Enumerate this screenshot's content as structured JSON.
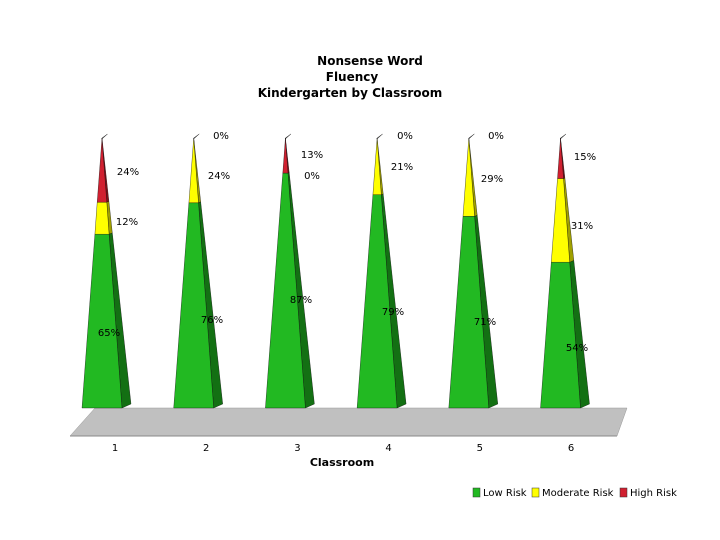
{
  "chart_data": {
    "type": "bar",
    "title": [
      "Nonsense Word",
      "Fluency",
      "Kindergarten by Classroom"
    ],
    "xlabel": "Classroom",
    "ylabel": "",
    "categories": [
      "1",
      "2",
      "3",
      "4",
      "5",
      "6"
    ],
    "series": [
      {
        "name": "Low Risk",
        "values": [
          65,
          76,
          87,
          79,
          71,
          54
        ],
        "color": "#22b922",
        "shade": "#137013"
      },
      {
        "name": "Moderate Risk",
        "values": [
          12,
          24,
          0,
          21,
          29,
          31
        ],
        "color": "#ffff00",
        "shade": "#a0a000"
      },
      {
        "name": "High Risk",
        "values": [
          24,
          0,
          13,
          0,
          0,
          15
        ],
        "color": "#d02030",
        "shade": "#801018"
      }
    ],
    "data_labels": {
      "Low Risk": [
        "65%",
        "76%",
        "87%",
        "79%",
        "71%",
        "54%"
      ],
      "Moderate Risk": [
        "12%",
        "24%",
        "0%",
        "21%",
        "29%",
        "31%"
      ],
      "High Risk": [
        "24%",
        "0%",
        "13%",
        "0%",
        "0%",
        "15%"
      ]
    },
    "legend_position": "bottom-right",
    "floor_color": "#c0c0c0",
    "grid": false
  }
}
